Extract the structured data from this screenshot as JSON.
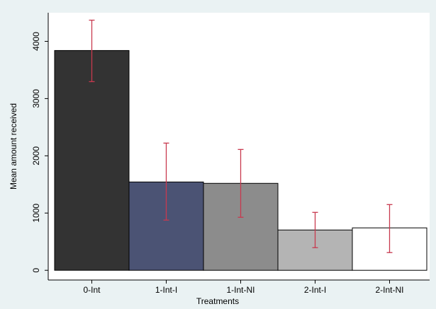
{
  "chart_data": {
    "type": "bar",
    "x_label": "Treatments",
    "y_label": "Mean amount received",
    "categories": [
      "0-Int",
      "1-Int-I",
      "1-Int-NI",
      "2-Int-I",
      "2-Int-NI"
    ],
    "values": [
      3840,
      1543,
      1519,
      704,
      741
    ],
    "ci_low": [
      3296,
      877,
      926,
      395,
      309
    ],
    "ci_high": [
      4370,
      2222,
      2111,
      1012,
      1148
    ],
    "colors": [
      "#333333",
      "#4b5374",
      "#8c8c8c",
      "#b4b4b4",
      "#ffffff"
    ],
    "error_color": "#c8394f",
    "ylim": [
      -170,
      4500
    ],
    "yticks": [
      0,
      1000,
      2000,
      3000,
      4000
    ],
    "grid": false
  }
}
